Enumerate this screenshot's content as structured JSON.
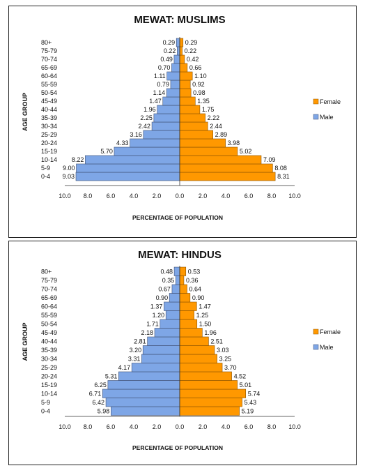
{
  "chart_data": [
    {
      "type": "bar",
      "orientation": "horizontal-population-pyramid",
      "title": "MEWAT: MUSLIMS",
      "xlabel": "PERCENTAGE OF POPULATION",
      "ylabel": "AGE GROUP",
      "xlim": [
        -10,
        10
      ],
      "x_ticks": [
        "10.0",
        "8.0",
        "6.0",
        "4.0",
        "2.0",
        "0.0",
        "2.0",
        "4.0",
        "6.0",
        "8.0",
        "10.0"
      ],
      "legend_position": "right",
      "categories": [
        "0-4",
        "5-9",
        "10-14",
        "15-19",
        "20-24",
        "25-29",
        "30-34",
        "35-39",
        "40-44",
        "45-49",
        "50-54",
        "55-59",
        "60-64",
        "65-69",
        "70-74",
        "75-79",
        "80+"
      ],
      "series": [
        {
          "name": "Female",
          "color": "#FF9800",
          "values": [
            8.31,
            8.08,
            7.09,
            5.02,
            3.98,
            2.89,
            2.44,
            2.22,
            1.75,
            1.35,
            0.98,
            0.92,
            1.1,
            0.66,
            0.42,
            0.22,
            0.29
          ]
        },
        {
          "name": "Male",
          "color": "#7EA6E6",
          "values": [
            9.03,
            9.0,
            8.22,
            5.7,
            4.33,
            3.16,
            2.42,
            2.25,
            1.96,
            1.47,
            1.14,
            0.79,
            1.11,
            0.7,
            0.49,
            0.22,
            0.29
          ]
        }
      ]
    },
    {
      "type": "bar",
      "orientation": "horizontal-population-pyramid",
      "title": "MEWAT: HINDUS",
      "xlabel": "PERCENTAGE OF POPULATION",
      "ylabel": "AGE GROUP",
      "xlim": [
        -10,
        10
      ],
      "x_ticks": [
        "10.0",
        "8.0",
        "6.0",
        "4.0",
        "2.0",
        "0.0",
        "2.0",
        "4.0",
        "6.0",
        "8.0",
        "10.0"
      ],
      "legend_position": "right",
      "categories": [
        "0-4",
        "5-9",
        "10-14",
        "15-19",
        "20-24",
        "25-29",
        "30-34",
        "35-39",
        "40-44",
        "45-49",
        "50-54",
        "55-59",
        "60-64",
        "65-69",
        "70-74",
        "75-79",
        "80+"
      ],
      "series": [
        {
          "name": "Female",
          "color": "#FF9800",
          "values": [
            5.19,
            5.43,
            5.74,
            5.01,
            4.52,
            3.7,
            3.25,
            3.03,
            2.51,
            1.96,
            1.5,
            1.25,
            1.47,
            0.9,
            0.64,
            0.36,
            0.53
          ]
        },
        {
          "name": "Male",
          "color": "#7EA6E6",
          "values": [
            5.98,
            6.42,
            6.71,
            6.25,
            5.31,
            4.17,
            3.31,
            3.2,
            2.81,
            2.18,
            1.71,
            1.2,
            1.37,
            0.9,
            0.67,
            0.35,
            0.48
          ]
        }
      ]
    }
  ]
}
